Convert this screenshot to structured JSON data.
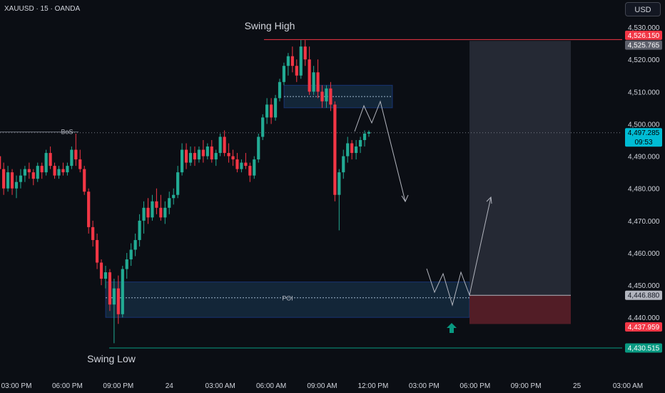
{
  "header": {
    "symbol": "XAUUSD · 15 · OANDA",
    "currency": "USD"
  },
  "chart_data": {
    "type": "candlestick",
    "ylim": [
      4421,
      4534
    ],
    "y_ticks": [
      "4,530.000",
      "4,520.000",
      "4,510.000",
      "4,500.000",
      "4,490.000",
      "4,480.000",
      "4,470.000",
      "4,460.000",
      "4,450.000",
      "4,440.000"
    ],
    "y_tick_values": [
      4530,
      4520,
      4510,
      4500,
      4490,
      4480,
      4470,
      4460,
      4450,
      4440
    ],
    "x_ticks": [
      "03:00 PM",
      "06:00 PM",
      "09:00 PM",
      "24",
      "03:00 AM",
      "06:00 AM",
      "09:00 AM",
      "12:00 PM",
      "03:00 PM",
      "06:00 PM",
      "09:00 PM",
      "25",
      "03:00 AM"
    ],
    "x_tick_hours": [
      0,
      3,
      6,
      9,
      12,
      15,
      18,
      21,
      24,
      27,
      30,
      33,
      36
    ],
    "candles": [
      [
        4490.0,
        4491.0,
        4484.0,
        4486.0
      ],
      [
        4486.0,
        4488.0,
        4478.0,
        4480.0
      ],
      [
        4480.0,
        4487.0,
        4479.0,
        4485.0
      ],
      [
        4485.0,
        4486.0,
        4478.0,
        4480.0
      ],
      [
        4480.0,
        4484.0,
        4477.0,
        4482.0
      ],
      [
        4482.0,
        4486.0,
        4480.0,
        4484.0
      ],
      [
        4484.0,
        4487.0,
        4482.0,
        4486.0
      ],
      [
        4486.0,
        4488.0,
        4483.0,
        4485.0
      ],
      [
        4485.0,
        4486.0,
        4481.0,
        4483.0
      ],
      [
        4483.0,
        4488.0,
        4482.0,
        4487.0
      ],
      [
        4487.0,
        4488.0,
        4483.0,
        4485.0
      ],
      [
        4485.0,
        4492.0,
        4484.0,
        4491.0
      ],
      [
        4491.0,
        4493.0,
        4486.0,
        4487.0
      ],
      [
        4487.0,
        4488.0,
        4483.0,
        4484.0
      ],
      [
        4484.0,
        4487.0,
        4483.0,
        4486.0
      ],
      [
        4486.0,
        4488.0,
        4484.0,
        4485.0
      ],
      [
        4485.0,
        4488.0,
        4484.0,
        4487.0
      ],
      [
        4487.0,
        4493.0,
        4486.0,
        4492.0
      ],
      [
        4492.0,
        4497.0,
        4487.0,
        4489.0
      ],
      [
        4489.0,
        4492.0,
        4485.0,
        4486.0
      ],
      [
        4486.0,
        4487.0,
        4478.0,
        4479.0
      ],
      [
        4479.0,
        4480.0,
        4466.0,
        4468.0
      ],
      [
        4468.0,
        4470.0,
        4462.0,
        4464.0
      ],
      [
        4464.0,
        4466.0,
        4455.0,
        4457.0
      ],
      [
        4457.0,
        4458.0,
        4450.0,
        4452.0
      ],
      [
        4452.0,
        4456.0,
        4449.0,
        4454.0
      ],
      [
        4454.0,
        4455.0,
        4442.0,
        4444.0
      ],
      [
        4444.0,
        4452.0,
        4432.0,
        4449.0
      ],
      [
        4449.0,
        4453.0,
        4438.0,
        4441.0
      ],
      [
        4441.0,
        4456.0,
        4440.0,
        4455.0
      ],
      [
        4455.0,
        4460.0,
        4452.0,
        4458.0
      ],
      [
        4458.0,
        4463.0,
        4456.0,
        4461.0
      ],
      [
        4461.0,
        4466.0,
        4459.0,
        4464.0
      ],
      [
        4464.0,
        4472.0,
        4462.0,
        4470.0
      ],
      [
        4470.0,
        4476.0,
        4466.0,
        4474.0
      ],
      [
        4474.0,
        4477.0,
        4469.0,
        4471.0
      ],
      [
        4471.0,
        4478.0,
        4470.0,
        4476.0
      ],
      [
        4476.0,
        4480.0,
        4472.0,
        4474.0
      ],
      [
        4474.0,
        4478.0,
        4470.0,
        4471.0
      ],
      [
        4471.0,
        4476.0,
        4469.0,
        4474.0
      ],
      [
        4474.0,
        4479.0,
        4472.0,
        4477.0
      ],
      [
        4477.0,
        4480.0,
        4475.0,
        4478.0
      ],
      [
        4478.0,
        4487.0,
        4477.0,
        4485.0
      ],
      [
        4485.0,
        4494.0,
        4484.0,
        4492.0
      ],
      [
        4492.0,
        4494.0,
        4486.0,
        4488.0
      ],
      [
        4488.0,
        4493.0,
        4487.0,
        4491.0
      ],
      [
        4491.0,
        4493.0,
        4487.0,
        4489.0
      ],
      [
        4489.0,
        4493.0,
        4488.0,
        4492.0
      ],
      [
        4492.0,
        4495.0,
        4488.0,
        4490.0
      ],
      [
        4490.0,
        4494.0,
        4489.0,
        4493.0
      ],
      [
        4493.0,
        4495.0,
        4488.0,
        4489.0
      ],
      [
        4489.0,
        4492.0,
        4487.0,
        4491.0
      ],
      [
        4491.0,
        4497.0,
        4490.0,
        4496.0
      ],
      [
        4496.0,
        4498.0,
        4490.0,
        4491.0
      ],
      [
        4491.0,
        4494.0,
        4488.0,
        4490.0
      ],
      [
        4490.0,
        4492.0,
        4487.0,
        4489.0
      ],
      [
        4489.0,
        4491.0,
        4485.0,
        4486.0
      ],
      [
        4486.0,
        4489.0,
        4485.0,
        4488.0
      ],
      [
        4488.0,
        4491.0,
        4486.0,
        4487.0
      ],
      [
        4487.0,
        4488.0,
        4482.0,
        4484.0
      ],
      [
        4484.0,
        4490.0,
        4483.0,
        4489.0
      ],
      [
        4489.0,
        4497.0,
        4488.0,
        4496.0
      ],
      [
        4496.0,
        4503.0,
        4495.0,
        4502.0
      ],
      [
        4502.0,
        4508.0,
        4500.0,
        4506.0
      ],
      [
        4506.0,
        4508.0,
        4500.0,
        4502.0
      ],
      [
        4502.0,
        4509.0,
        4501.0,
        4508.0
      ],
      [
        4508.0,
        4514.0,
        4507.0,
        4513.0
      ],
      [
        4513.0,
        4519.0,
        4512.0,
        4518.0
      ],
      [
        4518.0,
        4522.0,
        4515.0,
        4521.0
      ],
      [
        4521.0,
        4524.0,
        4516.0,
        4518.0
      ],
      [
        4518.0,
        4520.0,
        4513.0,
        4515.0
      ],
      [
        4515.0,
        4526.0,
        4514.0,
        4524.0
      ],
      [
        4524.0,
        4526.0,
        4518.0,
        4520.0
      ],
      [
        4520.0,
        4524.0,
        4509.0,
        4510.0
      ],
      [
        4510.0,
        4518.0,
        4509.0,
        4516.0
      ],
      [
        4516.0,
        4520.0,
        4508.0,
        4510.0
      ],
      [
        4510.0,
        4512.0,
        4505.0,
        4507.0
      ],
      [
        4507.0,
        4512.0,
        4505.0,
        4511.0
      ],
      [
        4511.0,
        4513.0,
        4504.0,
        4506.0
      ],
      [
        4506.0,
        4507.0,
        4476.0,
        4478.0
      ],
      [
        4478.0,
        4486.0,
        4467.0,
        4485.0
      ],
      [
        4485.0,
        4492.0,
        4483.0,
        4490.0
      ],
      [
        4490.0,
        4496.0,
        4488.0,
        4494.0
      ],
      [
        4494.0,
        4495.0,
        4489.0,
        4491.0
      ],
      [
        4491.0,
        4495.0,
        4489.0,
        4493.0
      ],
      [
        4493.0,
        4496.0,
        4491.0,
        4495.0
      ],
      [
        4495.0,
        4498.0,
        4493.0,
        4497.0
      ],
      [
        4497.0,
        4498.0,
        4496.0,
        4497.5
      ]
    ],
    "candle_start_hour": -1.0,
    "candle_step_hour": 0.25,
    "colors": {
      "up": "#22ab94",
      "down": "#f23645",
      "axis_text": "#d1d4dc",
      "background": "#0b0e14"
    },
    "annotations": {
      "swing_high": "Swing High",
      "swing_low": "Swing Low",
      "bos": "BoS",
      "poi": "POI"
    },
    "levels": {
      "swing_high_price": 4526.15,
      "bos_price": 4497.5,
      "swing_low_price": 4430.515,
      "poi_mid": 4446.1,
      "entry": 4446.88,
      "stop": 4437.959,
      "target": 4525.765
    },
    "price_tags": [
      {
        "label": "4,526.150",
        "value": 4526.15,
        "bg": "#f23645",
        "fg": "#ffffff"
      },
      {
        "label": "4,525.765",
        "value": 4525.765,
        "bg": "#5d606b",
        "fg": "#ffffff"
      },
      {
        "label": "4,497.285",
        "value": 4497.285,
        "bg": "#00bcd4",
        "fg": "#000000",
        "sub": "09:53"
      },
      {
        "label": "4,446.880",
        "value": 4446.88,
        "bg": "#b2b5be",
        "fg": "#131722"
      },
      {
        "label": "4,437.959",
        "value": 4437.959,
        "bg": "#f23645",
        "fg": "#ffffff"
      },
      {
        "label": "4,430.515",
        "value": 4430.515,
        "bg": "#089981",
        "fg": "#ffffff"
      }
    ]
  }
}
